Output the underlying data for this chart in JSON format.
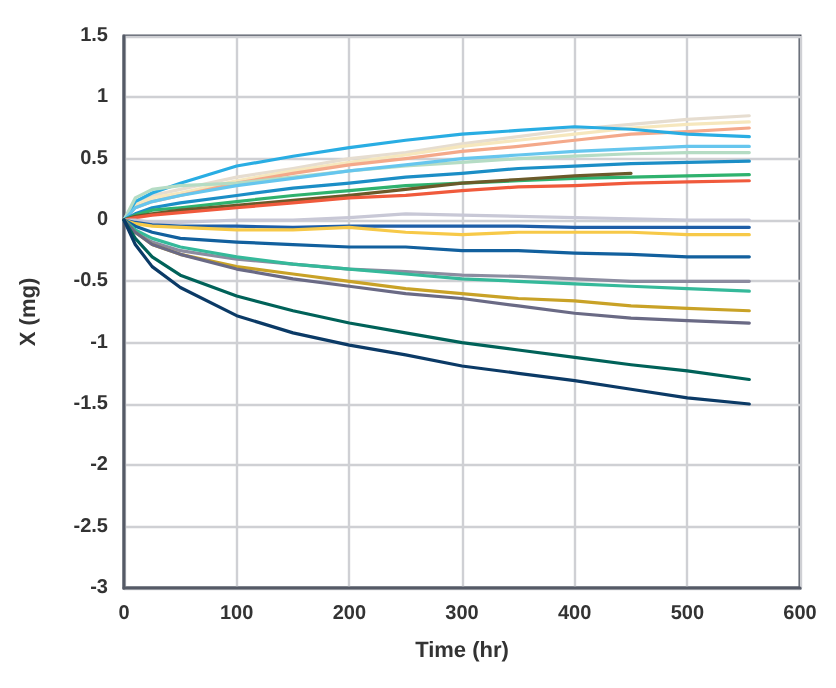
{
  "chart_data": {
    "type": "line",
    "xlabel": "Time (hr)",
    "ylabel": "X (mg)",
    "x": [
      0,
      10,
      25,
      50,
      100,
      150,
      200,
      250,
      300,
      350,
      400,
      450,
      500,
      555
    ],
    "xlim": [
      0,
      600
    ],
    "xticks": [
      0,
      100,
      200,
      300,
      400,
      500,
      600
    ],
    "ylim": [
      -3,
      1.5
    ],
    "yticks": [
      -3,
      -2.5,
      -2,
      -1.5,
      -1,
      -0.5,
      0,
      0.5,
      1,
      1.5
    ],
    "grid": true,
    "marker": "none",
    "line_style": "solid",
    "series": [
      {
        "color": "#e6ddd0",
        "values": [
          0,
          0.15,
          0.2,
          0.25,
          0.35,
          0.42,
          0.5,
          0.55,
          0.62,
          0.68,
          0.74,
          0.78,
          0.82,
          0.85
        ]
      },
      {
        "color": "#f6e7bd",
        "values": [
          0,
          0.12,
          0.18,
          0.22,
          0.32,
          0.4,
          0.47,
          0.53,
          0.6,
          0.65,
          0.7,
          0.75,
          0.78,
          0.8
        ]
      },
      {
        "color": "#f4a98a",
        "values": [
          0,
          0.1,
          0.15,
          0.2,
          0.3,
          0.38,
          0.45,
          0.5,
          0.56,
          0.6,
          0.65,
          0.7,
          0.72,
          0.75
        ]
      },
      {
        "color": "#29ade3",
        "values": [
          0,
          0.15,
          0.22,
          0.3,
          0.44,
          0.52,
          0.59,
          0.65,
          0.7,
          0.73,
          0.76,
          0.74,
          0.7,
          0.68
        ]
      },
      {
        "color": "#b5dcc4",
        "values": [
          0,
          0.18,
          0.25,
          0.28,
          0.3,
          0.35,
          0.4,
          0.44,
          0.47,
          0.5,
          0.52,
          0.54,
          0.55,
          0.55
        ]
      },
      {
        "color": "#66c6ee",
        "values": [
          0,
          0.1,
          0.15,
          0.2,
          0.28,
          0.34,
          0.4,
          0.45,
          0.5,
          0.53,
          0.56,
          0.58,
          0.6,
          0.6
        ]
      },
      {
        "color": "#1b8ec6",
        "values": [
          0,
          0.05,
          0.1,
          0.14,
          0.2,
          0.26,
          0.3,
          0.35,
          0.38,
          0.42,
          0.44,
          0.46,
          0.47,
          0.48
        ]
      },
      {
        "color": "#2fb26e",
        "values": [
          0,
          0.04,
          0.08,
          0.1,
          0.15,
          0.2,
          0.24,
          0.28,
          0.3,
          0.32,
          0.34,
          0.35,
          0.36,
          0.37
        ]
      },
      {
        "color": "#6b5a2a",
        "values": [
          0,
          0.03,
          0.05,
          0.08,
          0.12,
          0.16,
          0.2,
          0.25,
          0.3,
          0.33,
          0.36,
          0.38,
          null,
          null
        ]
      },
      {
        "color": "#f05a3c",
        "values": [
          0,
          0.02,
          0.04,
          0.06,
          0.1,
          0.14,
          0.18,
          0.2,
          0.24,
          0.27,
          0.28,
          0.3,
          0.31,
          0.32
        ]
      },
      {
        "color": "#c8c8d6",
        "values": [
          0,
          0,
          -0.02,
          -0.02,
          0,
          0,
          0.02,
          0.05,
          0.04,
          0.03,
          0.02,
          0.01,
          0,
          0
        ]
      },
      {
        "color": "#1f5fa8",
        "values": [
          0,
          -0.02,
          -0.04,
          -0.05,
          -0.05,
          -0.06,
          -0.05,
          -0.05,
          -0.05,
          -0.05,
          -0.06,
          -0.06,
          -0.06,
          -0.06
        ]
      },
      {
        "color": "#f7c948",
        "values": [
          0,
          -0.03,
          -0.05,
          -0.06,
          -0.08,
          -0.08,
          -0.06,
          -0.1,
          -0.12,
          -0.1,
          -0.1,
          -0.1,
          -0.12,
          -0.12
        ]
      },
      {
        "color": "#12609e",
        "values": [
          0,
          -0.05,
          -0.1,
          -0.15,
          -0.18,
          -0.2,
          -0.22,
          -0.22,
          -0.25,
          -0.25,
          -0.27,
          -0.28,
          -0.3,
          -0.3
        ]
      },
      {
        "color": "#8c8ca0",
        "values": [
          0,
          -0.1,
          -0.18,
          -0.25,
          -0.32,
          -0.36,
          -0.4,
          -0.42,
          -0.45,
          -0.46,
          -0.48,
          -0.5,
          -0.5,
          -0.5
        ]
      },
      {
        "color": "#35b99a",
        "values": [
          0,
          -0.08,
          -0.15,
          -0.22,
          -0.3,
          -0.36,
          -0.4,
          -0.44,
          -0.48,
          -0.5,
          -0.52,
          -0.54,
          -0.56,
          -0.58
        ]
      },
      {
        "color": "#c9a227",
        "values": [
          0,
          -0.1,
          -0.2,
          -0.28,
          -0.38,
          -0.44,
          -0.5,
          -0.56,
          -0.6,
          -0.64,
          -0.66,
          -0.7,
          -0.72,
          -0.74
        ]
      },
      {
        "color": "#6a6a85",
        "values": [
          0,
          -0.1,
          -0.2,
          -0.28,
          -0.4,
          -0.48,
          -0.54,
          -0.6,
          -0.64,
          -0.7,
          -0.76,
          -0.8,
          -0.82,
          -0.84
        ]
      },
      {
        "color": "#006259",
        "values": [
          0,
          -0.15,
          -0.3,
          -0.45,
          -0.62,
          -0.74,
          -0.84,
          -0.92,
          -1.0,
          -1.06,
          -1.12,
          -1.18,
          -1.23,
          -1.3
        ]
      },
      {
        "color": "#0b3a66",
        "values": [
          0,
          -0.2,
          -0.38,
          -0.55,
          -0.78,
          -0.92,
          -1.02,
          -1.1,
          -1.19,
          -1.25,
          -1.31,
          -1.38,
          -1.45,
          -1.5
        ]
      }
    ]
  }
}
